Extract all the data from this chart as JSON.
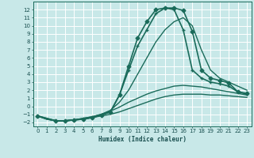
{
  "xlabel": "Humidex (Indice chaleur)",
  "xlim": [
    -0.5,
    23.5
  ],
  "ylim": [
    -2.5,
    13.0
  ],
  "yticks": [
    -2,
    -1,
    0,
    1,
    2,
    3,
    4,
    5,
    6,
    7,
    8,
    9,
    10,
    11,
    12
  ],
  "xticks": [
    0,
    1,
    2,
    3,
    4,
    5,
    6,
    7,
    8,
    9,
    10,
    11,
    12,
    13,
    14,
    15,
    16,
    17,
    18,
    19,
    20,
    21,
    22,
    23
  ],
  "bg_color": "#c8e8e8",
  "grid_color": "#ffffff",
  "line_color": "#1a6b5a",
  "lines": [
    {
      "x": [
        0,
        1,
        2,
        3,
        4,
        5,
        6,
        7,
        8,
        9,
        10,
        11,
        12,
        13,
        14,
        15,
        16,
        17,
        18,
        19,
        20,
        21,
        22,
        23
      ],
      "y": [
        -1.2,
        -1.6,
        -1.8,
        -1.8,
        -1.7,
        -1.6,
        -1.4,
        -1.2,
        -1.0,
        -0.7,
        -0.3,
        0.1,
        0.5,
        0.9,
        1.2,
        1.4,
        1.5,
        1.5,
        1.5,
        1.4,
        1.4,
        1.3,
        1.2,
        1.1
      ],
      "color": "#1a6b5a",
      "marker": null,
      "lw": 1.0
    },
    {
      "x": [
        0,
        1,
        2,
        3,
        4,
        5,
        6,
        7,
        8,
        9,
        10,
        11,
        12,
        13,
        14,
        15,
        16,
        17,
        18,
        19,
        20,
        21,
        22,
        23
      ],
      "y": [
        -1.2,
        -1.6,
        -1.8,
        -1.8,
        -1.7,
        -1.5,
        -1.3,
        -1.0,
        -0.6,
        -0.1,
        0.5,
        1.0,
        1.5,
        1.9,
        2.2,
        2.5,
        2.6,
        2.5,
        2.4,
        2.2,
        2.0,
        1.8,
        1.6,
        1.4
      ],
      "color": "#1a6b5a",
      "marker": null,
      "lw": 1.0
    },
    {
      "x": [
        0,
        1,
        2,
        3,
        4,
        5,
        6,
        7,
        8,
        9,
        10,
        11,
        12,
        13,
        14,
        15,
        16,
        17,
        18,
        19,
        20,
        21,
        22,
        23
      ],
      "y": [
        -1.2,
        -1.6,
        -1.8,
        -1.8,
        -1.7,
        -1.5,
        -1.3,
        -1.0,
        -0.5,
        0.5,
        2.0,
        4.0,
        6.0,
        8.0,
        9.5,
        10.5,
        11.0,
        10.0,
        7.0,
        4.5,
        3.5,
        3.0,
        2.5,
        2.0
      ],
      "color": "#1a6b5a",
      "marker": null,
      "lw": 1.0
    },
    {
      "x": [
        0,
        2,
        3,
        4,
        5,
        6,
        7,
        8,
        9,
        10,
        11,
        12,
        13,
        14,
        15,
        16,
        17,
        18,
        19,
        20,
        21,
        22,
        23
      ],
      "y": [
        -1.2,
        -1.8,
        -1.8,
        -1.7,
        -1.6,
        -1.4,
        -1.1,
        -0.7,
        1.4,
        5.0,
        8.5,
        10.5,
        12.0,
        12.2,
        12.2,
        11.9,
        9.3,
        4.5,
        3.5,
        3.2,
        2.9,
        1.8,
        1.6
      ],
      "color": "#1a6b5a",
      "marker": "D",
      "lw": 1.2,
      "ms": 2.5
    },
    {
      "x": [
        0,
        2,
        3,
        4,
        5,
        6,
        7,
        8,
        9,
        10,
        11,
        12,
        13,
        14,
        15,
        16,
        17,
        18,
        19,
        20,
        21,
        22,
        23
      ],
      "y": [
        -1.2,
        -1.8,
        -1.8,
        -1.7,
        -1.6,
        -1.4,
        -1.1,
        -0.7,
        1.4,
        4.5,
        7.5,
        9.5,
        11.5,
        12.2,
        12.0,
        9.5,
        4.5,
        3.5,
        3.0,
        2.8,
        2.5,
        1.8,
        1.5
      ],
      "color": "#1a6b5a",
      "marker": "+",
      "lw": 1.2,
      "ms": 3.5
    }
  ]
}
